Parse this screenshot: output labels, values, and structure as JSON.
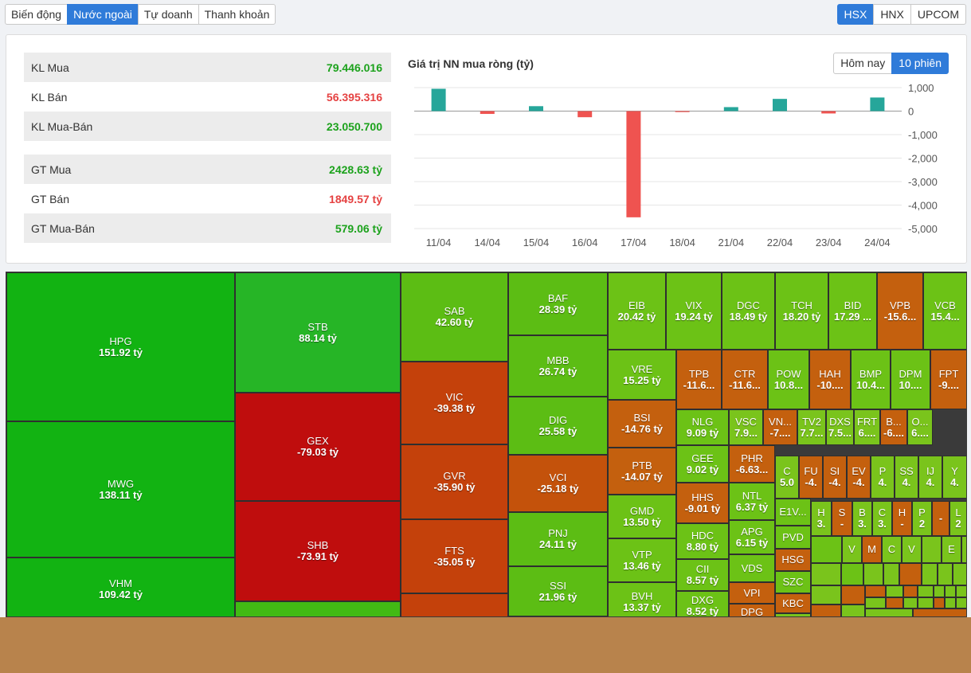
{
  "tabs": [
    {
      "label": "Biến động",
      "active": false
    },
    {
      "label": "Nước ngoài",
      "active": true
    },
    {
      "label": "Tự doanh",
      "active": false
    },
    {
      "label": "Thanh khoản",
      "active": false
    }
  ],
  "exchanges": [
    {
      "label": "HSX",
      "active": true
    },
    {
      "label": "HNX",
      "active": false
    },
    {
      "label": "UPCOM",
      "active": false
    }
  ],
  "stats": {
    "kl_mua": {
      "label": "KL Mua",
      "value": "79.446.016"
    },
    "kl_ban": {
      "label": "KL Bán",
      "value": "56.395.316"
    },
    "kl_mua_ban": {
      "label": "KL Mua-Bán",
      "value": "23.050.700"
    },
    "gt_mua": {
      "label": "GT Mua",
      "value": "2428.63 tỷ"
    },
    "gt_ban": {
      "label": "GT Bán",
      "value": "1849.57 tỷ"
    },
    "gt_mua_ban": {
      "label": "GT Mua-Bán",
      "value": "579.06 tỷ"
    }
  },
  "chart_toggle": {
    "today": "Hôm nay",
    "sessions": "10 phiên"
  },
  "colors": {
    "accent": "#2f7bd9",
    "positive": "#1ca21c",
    "negative": "#e54242",
    "bar_up": "#26a69a",
    "bar_down": "#ef5350"
  },
  "chart_data": {
    "type": "bar",
    "title": "Giá trị NN mua ròng (tỷ)",
    "categories": [
      "11/04",
      "14/04",
      "15/04",
      "16/04",
      "17/04",
      "18/04",
      "21/04",
      "22/04",
      "23/04",
      "24/04"
    ],
    "values": [
      950,
      -120,
      210,
      -260,
      -4520,
      -10,
      170,
      520,
      -100,
      579
    ],
    "ylim": [
      -5000,
      1000
    ],
    "yticks": [
      1000,
      0,
      -1000,
      -2000,
      -3000,
      -4000,
      -5000
    ],
    "ytick_labels": [
      "1,000",
      "0",
      "-1,000",
      "-2,000",
      "-3,000",
      "-4,000",
      "-5,000"
    ],
    "ylabel_position": "right",
    "grid": true
  },
  "treemap": [
    {
      "s": "HPG",
      "v": "151.92 tỷ"
    },
    {
      "s": "MWG",
      "v": "138.11 tỷ"
    },
    {
      "s": "VHM",
      "v": "109.42 tỷ"
    },
    {
      "s": "STB",
      "v": "88.14 tỷ"
    },
    {
      "s": "GEX",
      "v": "-79.03 tỷ"
    },
    {
      "s": "SHB",
      "v": "-73.91 tỷ"
    },
    {
      "s": "",
      "v": ""
    },
    {
      "s": "SAB",
      "v": "42.60 tỷ"
    },
    {
      "s": "VIC",
      "v": "-39.38 tỷ"
    },
    {
      "s": "GVR",
      "v": "-35.90 tỷ"
    },
    {
      "s": "FTS",
      "v": "-35.05 tỷ"
    },
    {
      "s": "",
      "v": ""
    },
    {
      "s": "BAF",
      "v": "28.39 tỷ"
    },
    {
      "s": "MBB",
      "v": "26.74 tỷ"
    },
    {
      "s": "DIG",
      "v": "25.58 tỷ"
    },
    {
      "s": "VCI",
      "v": "-25.18 tỷ"
    },
    {
      "s": "PNJ",
      "v": "24.11 tỷ"
    },
    {
      "s": "SSI",
      "v": "21.96 tỷ"
    },
    {
      "s": "",
      "v": ""
    },
    {
      "s": "EIB",
      "v": "20.42 tỷ"
    },
    {
      "s": "VIX",
      "v": "19.24 tỷ"
    },
    {
      "s": "DGC",
      "v": "18.49 tỷ"
    },
    {
      "s": "TCH",
      "v": "18.20 tỷ"
    },
    {
      "s": "BID",
      "v": "17.29 ..."
    },
    {
      "s": "VPB",
      "v": "-15.6..."
    },
    {
      "s": "VCB",
      "v": "15.4..."
    },
    {
      "s": "VRE",
      "v": "15.25 tỷ"
    },
    {
      "s": "TPB",
      "v": "-11.6..."
    },
    {
      "s": "CTR",
      "v": "-11.6..."
    },
    {
      "s": "POW",
      "v": "10.8..."
    },
    {
      "s": "HAH",
      "v": "-10...."
    },
    {
      "s": "BMP",
      "v": "10.4..."
    },
    {
      "s": "DPM",
      "v": "10...."
    },
    {
      "s": "FPT",
      "v": "-9...."
    },
    {
      "s": "BSI",
      "v": "-14.76 tỷ"
    },
    {
      "s": "PTB",
      "v": "-14.07 tỷ"
    },
    {
      "s": "GMD",
      "v": "13.50 tỷ"
    },
    {
      "s": "VTP",
      "v": "13.46 tỷ"
    },
    {
      "s": "BVH",
      "v": "13.37 tỷ"
    },
    {
      "s": "NLG",
      "v": "9.09 tỷ"
    },
    {
      "s": "VSC",
      "v": "7.9..."
    },
    {
      "s": "VN...",
      "v": "-7...."
    },
    {
      "s": "TV2",
      "v": "7.7..."
    },
    {
      "s": "DXS",
      "v": "7.5..."
    },
    {
      "s": "FRT",
      "v": "6...."
    },
    {
      "s": "B...",
      "v": "-6...."
    },
    {
      "s": "O...",
      "v": "6...."
    },
    {
      "s": "GEE",
      "v": "9.02 tỷ"
    },
    {
      "s": "PHR",
      "v": "-6.63..."
    },
    {
      "s": "C",
      "v": "5.0"
    },
    {
      "s": "FU",
      "v": "-4."
    },
    {
      "s": "SI",
      "v": "-4."
    },
    {
      "s": "EV",
      "v": "-4."
    },
    {
      "s": "P",
      "v": "4."
    },
    {
      "s": "SS",
      "v": "4."
    },
    {
      "s": "IJ",
      "v": "4."
    },
    {
      "s": "Y",
      "v": "4."
    },
    {
      "s": "HHS",
      "v": "-9.01 tỷ"
    },
    {
      "s": "NTL",
      "v": "6.37 tỷ"
    },
    {
      "s": "E1V...",
      "v": ""
    },
    {
      "s": "H",
      "v": "3."
    },
    {
      "s": "S",
      "v": "-"
    },
    {
      "s": "B",
      "v": "3."
    },
    {
      "s": "C",
      "v": "3."
    },
    {
      "s": "H",
      "v": "-"
    },
    {
      "s": "P",
      "v": "2"
    },
    {
      "s": "",
      "v": "-"
    },
    {
      "s": "L",
      "v": "2"
    },
    {
      "s": "HDC",
      "v": "8.80 tỷ"
    },
    {
      "s": "APG",
      "v": "6.15 tỷ"
    },
    {
      "s": "PVD",
      "v": ""
    },
    {
      "s": "V",
      "v": ""
    },
    {
      "s": "M",
      "v": ""
    },
    {
      "s": "C",
      "v": ""
    },
    {
      "s": "V",
      "v": ""
    },
    {
      "s": "E",
      "v": ""
    },
    {
      "s": "CII",
      "v": "8.57 tỷ"
    },
    {
      "s": "VDS",
      "v": ""
    },
    {
      "s": "HSG",
      "v": ""
    },
    {
      "s": "SZC",
      "v": ""
    },
    {
      "s": "DXG",
      "v": "8.52 tỷ"
    },
    {
      "s": "VPI",
      "v": ""
    },
    {
      "s": "KBC",
      "v": ""
    },
    {
      "s": "DPG",
      "v": ""
    }
  ]
}
